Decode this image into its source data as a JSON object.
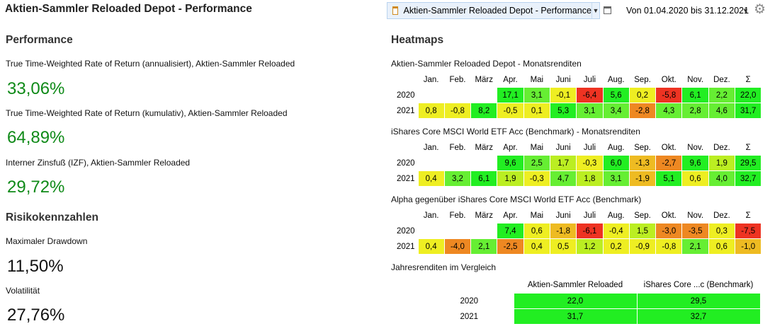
{
  "header": {
    "title": "Aktien-Sammler Reloaded Depot - Performance",
    "selector_label": "Aktien-Sammler Reloaded Depot - Performance",
    "date_range": "Von 01.04.2020 bis 31.12.2021",
    "icons": [
      "depot-icon",
      "chevron-down-icon",
      "window-icon",
      "gear-icon"
    ]
  },
  "performance": {
    "heading": "Performance",
    "ttwror_ann_label": "True Time-Weighted Rate of Return (annualisiert), Aktien-Sammler Reloaded",
    "ttwror_ann_value": "33,06%",
    "ttwror_cum_label": "True Time-Weighted Rate of Return (kumulativ), Aktien-Sammler Reloaded",
    "ttwror_cum_value": "64,89%",
    "irr_label": "Interner Zinsfuß (IZF), Aktien-Sammler Reloaded",
    "irr_value": "29,72%"
  },
  "risk": {
    "heading": "Risikokennzahlen",
    "drawdown_label": "Maximaler Drawdown",
    "drawdown_value": "11,50%",
    "volatility_label": "Volatilität",
    "volatility_value": "27,76%"
  },
  "heatmaps": {
    "heading": "Heatmaps",
    "months": [
      "Jan.",
      "Feb.",
      "März",
      "Apr.",
      "Mai",
      "Juni",
      "Juli",
      "Aug.",
      "Sep.",
      "Okt.",
      "Nov.",
      "Dez.",
      "Σ"
    ],
    "colors": {
      "strong_positive": "#22ee22",
      "positive": "#66ee33",
      "slight_positive": "#bbee22",
      "neutral": "#eeee22",
      "slight_negative": "#eebb22",
      "negative": "#ee8822",
      "strong_negative": "#ee3322"
    },
    "tables": [
      {
        "title": "Aktien-Sammler Reloaded Depot - Monatsrenditen",
        "rows": [
          {
            "year": "2020",
            "values": [
              "",
              "",
              "",
              "17,1",
              "3,1",
              "-0,1",
              "-6,4",
              "5,6",
              "0,2",
              "-5,8",
              "6,1",
              "2,2",
              "22,0"
            ]
          },
          {
            "year": "2021",
            "values": [
              "0,8",
              "-0,8",
              "8,2",
              "-0,5",
              "0,1",
              "5,3",
              "3,1",
              "3,4",
              "-2,8",
              "4,3",
              "2,8",
              "4,6",
              "31,7"
            ]
          }
        ]
      },
      {
        "title": "iShares Core MSCI World ETF Acc (Benchmark) - Monatsrenditen",
        "rows": [
          {
            "year": "2020",
            "values": [
              "",
              "",
              "",
              "9,6",
              "2,5",
              "1,7",
              "-0,3",
              "6,0",
              "-1,3",
              "-2,7",
              "9,6",
              "1,9",
              "29,5"
            ]
          },
          {
            "year": "2021",
            "values": [
              "0,4",
              "3,2",
              "6,1",
              "1,9",
              "-0,3",
              "4,7",
              "1,8",
              "3,1",
              "-1,9",
              "5,1",
              "0,6",
              "4,0",
              "32,7"
            ]
          }
        ]
      },
      {
        "title": "Alpha gegenüber iShares Core MSCI World ETF Acc (Benchmark)",
        "rows": [
          {
            "year": "2020",
            "values": [
              "",
              "",
              "",
              "7,4",
              "0,6",
              "-1,8",
              "-6,1",
              "-0,4",
              "1,5",
              "-3,0",
              "-3,5",
              "0,3",
              "-7,5"
            ]
          },
          {
            "year": "2021",
            "values": [
              "0,4",
              "-4,0",
              "2,1",
              "-2,5",
              "0,4",
              "0,5",
              "1,2",
              "0,2",
              "-0,9",
              "-0,8",
              "2,1",
              "0,6",
              "-1,0"
            ]
          }
        ]
      }
    ],
    "yearly": {
      "title": "Jahresrenditen im Vergleich",
      "columns": [
        "Aktien-Sammler Reloaded",
        "iShares Core ...c (Benchmark)"
      ],
      "rows": [
        {
          "year": "2020",
          "values": [
            "22,0",
            "29,5"
          ]
        },
        {
          "year": "2021",
          "values": [
            "31,7",
            "32,7"
          ]
        }
      ]
    }
  }
}
